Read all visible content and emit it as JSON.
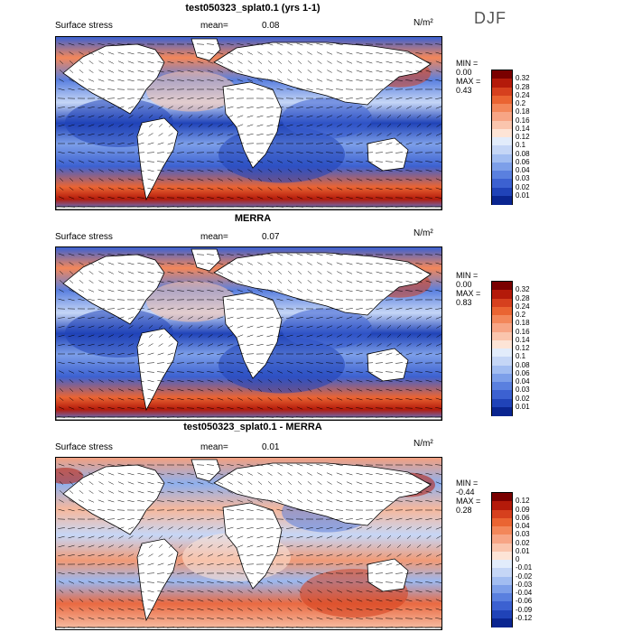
{
  "season": "DJF",
  "panels": [
    {
      "title": "test050323_splat0.1 (yrs 1-1)",
      "field": "Surface stress",
      "mean_label": "mean=",
      "mean_value": "0.08",
      "units": "N/m²",
      "min_label": "MIN =",
      "min_value": "0.00",
      "max_label": "MAX =",
      "max_value": "0.43",
      "colorbar_ticks": [
        "0.32",
        "0.28",
        "0.24",
        "0.2",
        "0.18",
        "0.16",
        "0.14",
        "0.12",
        "0.1",
        "0.08",
        "0.06",
        "0.04",
        "0.03",
        "0.02",
        "0.01"
      ],
      "colorbar_colors": [
        "#7a0000",
        "#b41a0a",
        "#d6401e",
        "#ea6432",
        "#f3875a",
        "#f7a585",
        "#fac5ad",
        "#fde4d6",
        "#e2ecfb",
        "#c5d6f6",
        "#a2bdf1",
        "#7d9fe9",
        "#5a80df",
        "#3c61d1",
        "#2043b8",
        "#0a2590"
      ]
    },
    {
      "title": "MERRA",
      "field": "Surface stress",
      "mean_label": "mean=",
      "mean_value": "0.07",
      "units": "N/m²",
      "min_label": "MIN =",
      "min_value": "0.00",
      "max_label": "MAX =",
      "max_value": "0.83",
      "colorbar_ticks": [
        "0.32",
        "0.28",
        "0.24",
        "0.2",
        "0.18",
        "0.16",
        "0.14",
        "0.12",
        "0.1",
        "0.08",
        "0.06",
        "0.04",
        "0.03",
        "0.02",
        "0.01"
      ],
      "colorbar_colors": [
        "#7a0000",
        "#b41a0a",
        "#d6401e",
        "#ea6432",
        "#f3875a",
        "#f7a585",
        "#fac5ad",
        "#fde4d6",
        "#e2ecfb",
        "#c5d6f6",
        "#a2bdf1",
        "#7d9fe9",
        "#5a80df",
        "#3c61d1",
        "#2043b8",
        "#0a2590"
      ]
    },
    {
      "title": "test050323_splat0.1 - MERRA",
      "field": "Surface stress",
      "mean_label": "mean=",
      "mean_value": "0.01",
      "units": "N/m²",
      "min_label": "MIN =",
      "min_value": "-0.44",
      "max_label": "MAX =",
      "max_value": "0.28",
      "colorbar_ticks": [
        "0.12",
        "0.09",
        "0.06",
        "0.04",
        "0.03",
        "0.02",
        "0.01",
        "0",
        "-0.01",
        "-0.02",
        "-0.03",
        "-0.04",
        "-0.06",
        "-0.09",
        "-0.12"
      ],
      "colorbar_colors": [
        "#7a0000",
        "#b41a0a",
        "#d6401e",
        "#ea6432",
        "#f3875a",
        "#f7a585",
        "#fac5ad",
        "#fde4d6",
        "#e2ecfb",
        "#c5d6f6",
        "#a2bdf1",
        "#7d9fe9",
        "#5a80df",
        "#3c61d1",
        "#2043b8",
        "#0a2590"
      ]
    }
  ]
}
